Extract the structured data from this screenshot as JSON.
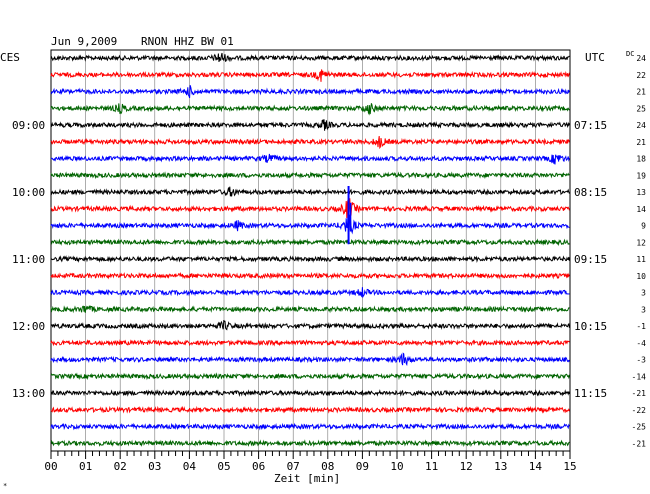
{
  "header": {
    "date": "Jun 9,2009",
    "station": "RNON HHZ BW 01",
    "left_zone": "CES",
    "right_zone": "UTC",
    "dc_label": "DC"
  },
  "chart_data": {
    "type": "line",
    "title": "Jun 9,2009   RNON HHZ BW 01",
    "xlabel": "Zeit [min]",
    "x_ticks": [
      "00",
      "01",
      "02",
      "03",
      "04",
      "05",
      "06",
      "07",
      "08",
      "09",
      "10",
      "11",
      "12",
      "13",
      "14",
      "15"
    ],
    "xlim": [
      0,
      15
    ],
    "grid": true,
    "trace_colors": [
      "#000000",
      "#ff0000",
      "#0000ff",
      "#006400"
    ],
    "left_time_labels": [
      {
        "row": 4,
        "text": "09:00"
      },
      {
        "row": 8,
        "text": "10:00"
      },
      {
        "row": 12,
        "text": "11:00"
      },
      {
        "row": 16,
        "text": "12:00"
      },
      {
        "row": 20,
        "text": "13:00"
      }
    ],
    "right_time_labels": [
      {
        "row": 4,
        "text": "07:15"
      },
      {
        "row": 8,
        "text": "08:15"
      },
      {
        "row": 12,
        "text": "09:15"
      },
      {
        "row": 16,
        "text": "10:15"
      },
      {
        "row": 20,
        "text": "11:15"
      }
    ],
    "dc_offsets": [
      "24",
      "22",
      "21",
      "25",
      "24",
      "21",
      "18",
      "19",
      "13",
      "14",
      "9",
      "12",
      "11",
      "10",
      "3",
      "3",
      "-1",
      "-4",
      "-3",
      "-14",
      "-21",
      "-22",
      "-25",
      "-21"
    ],
    "events": [
      {
        "row": 0,
        "minute": 4.9,
        "amp": 1.6
      },
      {
        "row": 1,
        "minute": 7.8,
        "amp": 1.5
      },
      {
        "row": 2,
        "minute": 4.0,
        "amp": 1.3
      },
      {
        "row": 3,
        "minute": 2.0,
        "amp": 1.1
      },
      {
        "row": 3,
        "minute": 9.2,
        "amp": 1.4
      },
      {
        "row": 4,
        "minute": 7.9,
        "amp": 1.2
      },
      {
        "row": 5,
        "minute": 9.5,
        "amp": 1.4
      },
      {
        "row": 6,
        "minute": 14.6,
        "amp": 1.5
      },
      {
        "row": 6,
        "minute": 6.3,
        "amp": 1.0
      },
      {
        "row": 8,
        "minute": 5.2,
        "amp": 1.1
      },
      {
        "row": 9,
        "minute": 8.6,
        "amp": 3.0
      },
      {
        "row": 10,
        "minute": 8.6,
        "amp": 3.2
      },
      {
        "row": 10,
        "minute": 5.4,
        "amp": 1.1
      },
      {
        "row": 14,
        "minute": 9.0,
        "amp": 1.0
      },
      {
        "row": 15,
        "minute": 1.0,
        "amp": 1.0
      },
      {
        "row": 16,
        "minute": 5.0,
        "amp": 1.1
      },
      {
        "row": 18,
        "minute": 10.2,
        "amp": 1.6
      }
    ],
    "bottom_marker": "*"
  }
}
